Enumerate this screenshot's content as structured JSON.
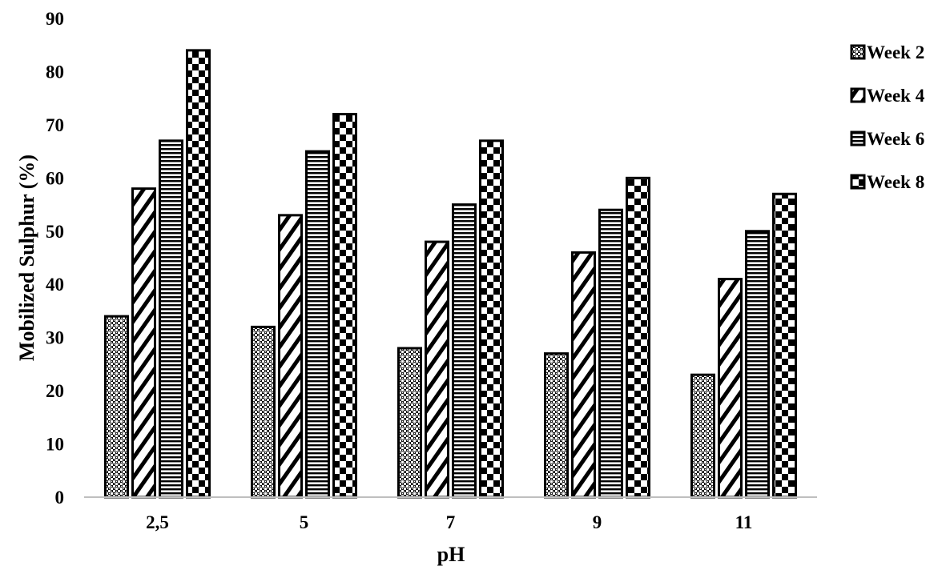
{
  "chart_data": {
    "type": "bar",
    "title": "",
    "xlabel": "pH",
    "ylabel": "Mobilized Sulphur (%)",
    "categories": [
      "2,5",
      "5",
      "7",
      "9",
      "11"
    ],
    "ylim": [
      0,
      90
    ],
    "yticks": [
      0,
      10,
      20,
      30,
      40,
      50,
      60,
      70,
      80,
      90
    ],
    "grid": false,
    "legend_position": "right",
    "series": [
      {
        "name": "Week 2",
        "pattern": "dots",
        "values": [
          34,
          32,
          28,
          27,
          23
        ]
      },
      {
        "name": "Week 4",
        "pattern": "diagonal-stripes",
        "values": [
          58,
          53,
          48,
          46,
          41
        ]
      },
      {
        "name": "Week 6",
        "pattern": "horizontal-stripes",
        "values": [
          67,
          65,
          55,
          54,
          50
        ]
      },
      {
        "name": "Week 8",
        "pattern": "checkerboard",
        "values": [
          84,
          72,
          67,
          60,
          57
        ]
      }
    ],
    "colors": {
      "ink": "#000000",
      "background": "#ffffff",
      "axis": "#bfbfbf"
    }
  }
}
